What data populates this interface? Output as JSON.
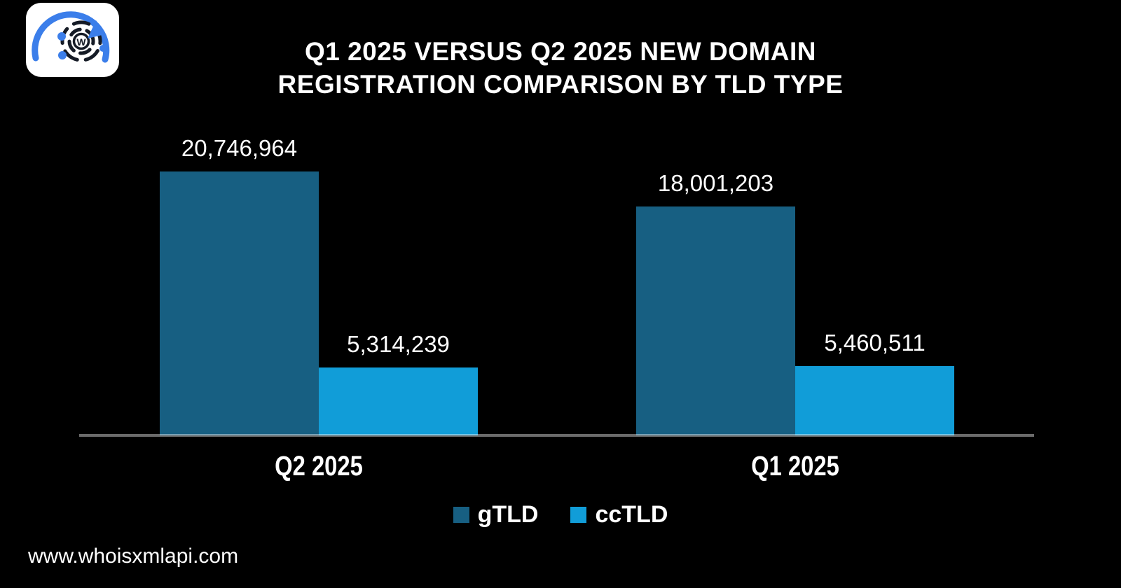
{
  "page": {
    "background": "#000000",
    "footer_url": "www.whoisxmlapi.com"
  },
  "logo": {
    "letter": "W",
    "tile_color": "#ffffff",
    "accent_blue": "#3B7EEA",
    "ring_color": "#151B26"
  },
  "title": {
    "line1": "Q1 2025 VERSUS Q2 2025 NEW DOMAIN",
    "line2": "REGISTRATION COMPARISON BY TLD TYPE"
  },
  "chart_data": {
    "type": "bar",
    "grouped": true,
    "title": "Q1 2025 VERSUS Q2 2025 NEW DOMAIN REGISTRATION COMPARISON BY TLD TYPE",
    "categories": [
      "Q2 2025",
      "Q1 2025"
    ],
    "series": [
      {
        "name": "gTLD",
        "color": "#175F82",
        "values": [
          20746964,
          18001203
        ],
        "labels": [
          "20,746,964",
          "18,001,203"
        ]
      },
      {
        "name": "ccTLD",
        "color": "#119DD8",
        "values": [
          5314239,
          5460511
        ],
        "labels": [
          "5,314,239",
          "5,460,511"
        ]
      }
    ],
    "xlabel": "",
    "ylabel": "",
    "ylim": [
      0,
      20746964
    ],
    "grid": false,
    "value_labels_shown": true,
    "axis_line_color": "#6B6B6B",
    "legend_position": "bottom",
    "background": "#000000",
    "text_color": "#FFFFFF"
  }
}
